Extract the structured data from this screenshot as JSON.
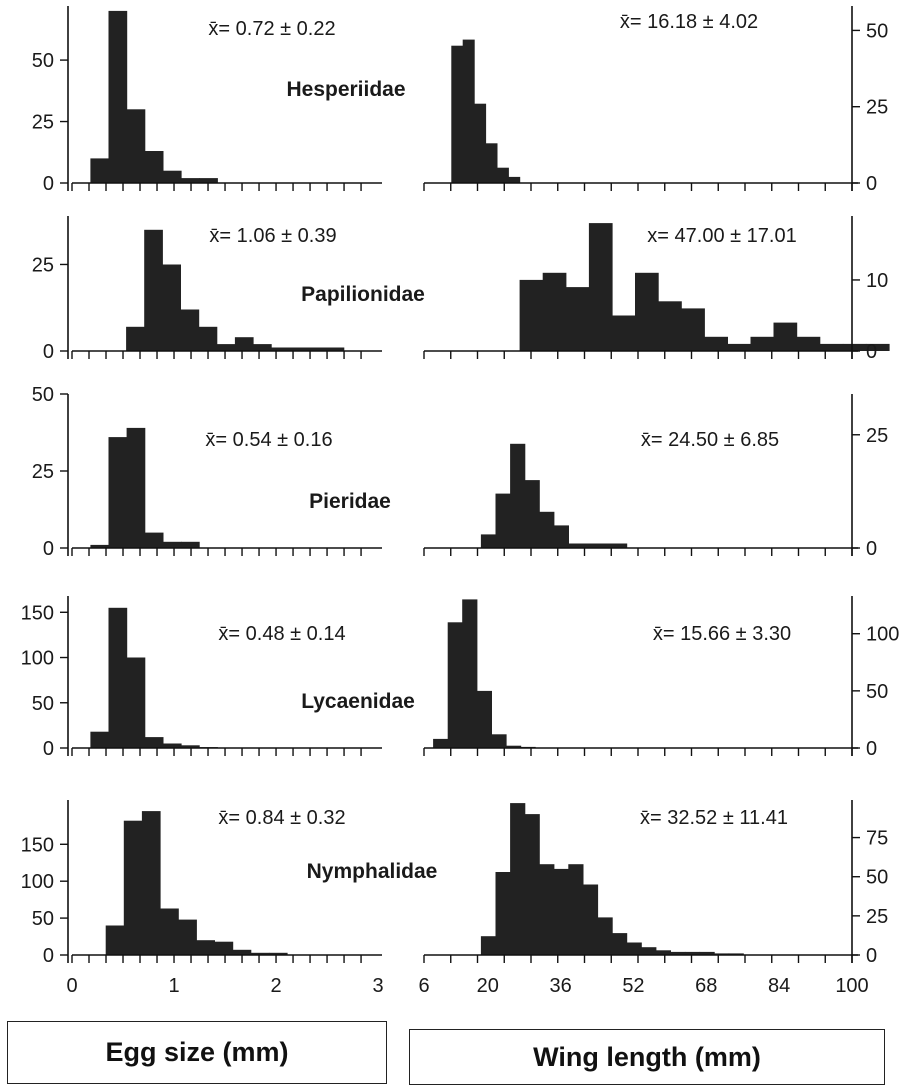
{
  "x_titles": {
    "egg": "Egg size (mm)",
    "wing": "Wing length (mm)"
  },
  "bar_color": "#222222",
  "chart_data": [
    {
      "type": "bar",
      "family": "Hesperiidae",
      "quantity": "Egg size",
      "stat": "x̄= 0.72 ± 0.22",
      "xlim": [
        0,
        3
      ],
      "bin_width": 0.1778,
      "bin_start": 0.18,
      "ylim": [
        0,
        72
      ],
      "yticks": [
        0,
        25,
        50
      ],
      "values": [
        10,
        70,
        30,
        13,
        5,
        2,
        2
      ]
    },
    {
      "type": "bar",
      "family": "Hesperiidae",
      "quantity": "Wing length",
      "stat": "x̄= 16.18 ± 4.02",
      "xlim": [
        6,
        100
      ],
      "bin_width": 2.5,
      "bin_start": 12,
      "ylim": [
        0,
        58
      ],
      "yticks": [
        0,
        25,
        50
      ],
      "values": [
        45,
        47,
        26,
        13,
        5,
        2
      ]
    },
    {
      "type": "bar",
      "family": "Papilionidae",
      "quantity": "Egg size",
      "stat": "x̄= 1.06 ± 0.39",
      "xlim": [
        0,
        3
      ],
      "bin_width": 0.1778,
      "bin_start": 0.53,
      "ylim": [
        0,
        39
      ],
      "yticks": [
        0,
        25
      ],
      "values": [
        7,
        35,
        25,
        12,
        7,
        2,
        4,
        2,
        1,
        1,
        1,
        1
      ]
    },
    {
      "type": "bar",
      "family": "Papilionidae",
      "quantity": "Wing length",
      "stat": "x= 47.00 ± 17.01",
      "xlim": [
        6,
        100
      ],
      "bin_width": 5.07,
      "bin_start": 27,
      "ylim": [
        0,
        19
      ],
      "yticks": [
        0,
        10
      ],
      "values": [
        10,
        11,
        9,
        18,
        5,
        11,
        7,
        6,
        2,
        1,
        2,
        4,
        2,
        1,
        1,
        1
      ]
    },
    {
      "type": "bar",
      "family": "Pieridae",
      "quantity": "Egg size",
      "stat": "x̄= 0.54 ± 0.16",
      "xlim": [
        0,
        3
      ],
      "bin_width": 0.1778,
      "bin_start": 0.18,
      "ylim": [
        0,
        50
      ],
      "yticks": [
        0,
        25,
        50
      ],
      "values": [
        1,
        36,
        39,
        5,
        2,
        2
      ]
    },
    {
      "type": "bar",
      "family": "Pieridae",
      "quantity": "Wing length",
      "stat": "x̄= 24.50 ± 6.85",
      "xlim": [
        6,
        100
      ],
      "bin_width": 3.2,
      "bin_start": 18.5,
      "ylim": [
        0,
        34
      ],
      "yticks": [
        0,
        25
      ],
      "values": [
        3,
        12,
        23,
        15,
        8,
        5,
        1,
        1,
        1,
        1
      ]
    },
    {
      "type": "bar",
      "family": "Lycaenidae",
      "quantity": "Egg size",
      "stat": "x̄= 0.48 ± 0.14",
      "xlim": [
        0,
        3
      ],
      "bin_width": 0.1778,
      "bin_start": 0.18,
      "ylim": [
        0,
        168
      ],
      "yticks": [
        0,
        50,
        100,
        150
      ],
      "values": [
        18,
        155,
        100,
        12,
        5,
        3,
        1
      ]
    },
    {
      "type": "bar",
      "family": "Lycaenidae",
      "quantity": "Wing length",
      "stat": "x̄= 15.66 ± 3.30",
      "xlim": [
        6,
        100
      ],
      "bin_width": 3.2,
      "bin_start": 8,
      "ylim": [
        0,
        133
      ],
      "yticks": [
        0,
        50,
        100
      ],
      "values": [
        8,
        110,
        130,
        50,
        12,
        2,
        1
      ]
    },
    {
      "type": "bar",
      "family": "Nymphalidae",
      "quantity": "Egg size",
      "stat": "x̄= 0.84 ± 0.32",
      "xlim": [
        0,
        3
      ],
      "bin_width": 0.1778,
      "bin_start": 0.33,
      "ylim": [
        0,
        210
      ],
      "yticks": [
        0,
        50,
        100,
        150
      ],
      "values": [
        40,
        182,
        195,
        63,
        48,
        20,
        18,
        7,
        3,
        3
      ]
    },
    {
      "type": "bar",
      "family": "Nymphalidae",
      "quantity": "Wing length",
      "stat": "x̄= 32.52 ± 11.41",
      "xlim": [
        6,
        100
      ],
      "bin_width": 3.2,
      "bin_start": 18.5,
      "ylim": [
        0,
        99
      ],
      "yticks": [
        0,
        25,
        50,
        75
      ],
      "values": [
        12,
        53,
        97,
        90,
        58,
        55,
        58,
        45,
        24,
        14,
        8,
        5,
        3,
        2,
        2,
        2,
        1,
        1
      ]
    }
  ],
  "x_ticks": {
    "egg": [
      "0",
      "1",
      "2",
      "3"
    ],
    "egg_values": [
      0,
      1,
      2,
      3
    ],
    "wing": [
      "6",
      "20",
      "36",
      "52",
      "68",
      "84",
      "100"
    ],
    "wing_values": [
      6,
      20,
      36,
      52,
      68,
      84,
      100
    ]
  }
}
